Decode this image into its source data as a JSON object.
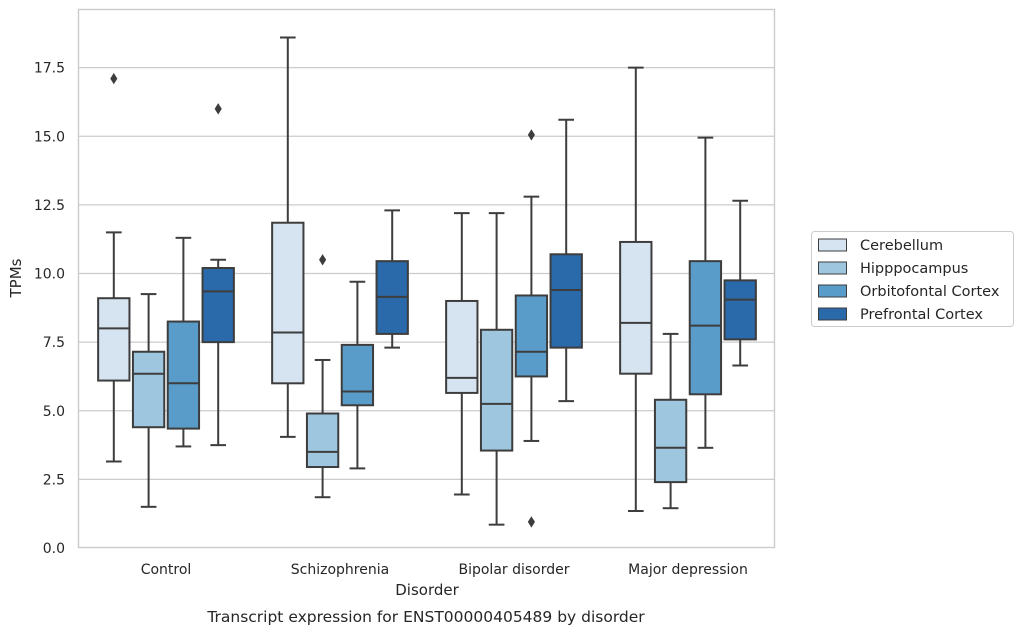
{
  "chart_data": {
    "type": "box",
    "caption": "Transcript expression for ENST00000405489 by disorder",
    "xlabel": "Disorder",
    "ylabel": "TPMs",
    "ylim": [
      0,
      19.6
    ],
    "yticks": [
      "0.0",
      "2.5",
      "5.0",
      "7.5",
      "10.0",
      "12.5",
      "15.0",
      "17.5"
    ],
    "grid": "horizontal",
    "legend_position": "right",
    "categories": [
      "Control",
      "Schizophrenia",
      "Bipolar disorder",
      "Major depression"
    ],
    "series": [
      {
        "name": "Cerebellum",
        "color": "#d6e4f2",
        "boxes": [
          {
            "whisker_low": 3.15,
            "q1": 6.1,
            "median": 8.0,
            "q3": 9.1,
            "whisker_high": 11.5,
            "outliers": [
              17.1
            ]
          },
          {
            "whisker_low": 4.05,
            "q1": 6.0,
            "median": 7.85,
            "q3": 11.85,
            "whisker_high": 18.6,
            "outliers": []
          },
          {
            "whisker_low": 1.95,
            "q1": 5.65,
            "median": 6.2,
            "q3": 9.0,
            "whisker_high": 12.2,
            "outliers": []
          },
          {
            "whisker_low": 1.35,
            "q1": 6.35,
            "median": 8.2,
            "q3": 11.15,
            "whisker_high": 17.5,
            "outliers": []
          }
        ]
      },
      {
        "name": "Hipppocampus",
        "color": "#9ec6de",
        "boxes": [
          {
            "whisker_low": 1.5,
            "q1": 4.4,
            "median": 6.35,
            "q3": 7.15,
            "whisker_high": 9.25,
            "outliers": []
          },
          {
            "whisker_low": 1.85,
            "q1": 2.95,
            "median": 3.5,
            "q3": 4.9,
            "whisker_high": 6.85,
            "outliers": [
              10.5
            ]
          },
          {
            "whisker_low": 0.85,
            "q1": 3.55,
            "median": 5.25,
            "q3": 7.95,
            "whisker_high": 12.2,
            "outliers": []
          },
          {
            "whisker_low": 1.45,
            "q1": 2.4,
            "median": 3.65,
            "q3": 5.4,
            "whisker_high": 7.8,
            "outliers": []
          }
        ]
      },
      {
        "name": "Orbitofontal Cortex",
        "color": "#5a9cc9",
        "boxes": [
          {
            "whisker_low": 3.7,
            "q1": 4.35,
            "median": 6.0,
            "q3": 8.25,
            "whisker_high": 11.3,
            "outliers": []
          },
          {
            "whisker_low": 2.9,
            "q1": 5.2,
            "median": 5.7,
            "q3": 7.4,
            "whisker_high": 9.7,
            "outliers": []
          },
          {
            "whisker_low": 3.9,
            "q1": 6.25,
            "median": 7.15,
            "q3": 9.2,
            "whisker_high": 12.8,
            "outliers": [
              15.05,
              0.95
            ]
          },
          {
            "whisker_low": 3.65,
            "q1": 5.6,
            "median": 8.1,
            "q3": 10.45,
            "whisker_high": 14.95,
            "outliers": []
          }
        ]
      },
      {
        "name": "Prefrontal Cortex",
        "color": "#2a69aa",
        "boxes": [
          {
            "whisker_low": 3.75,
            "q1": 7.5,
            "median": 9.35,
            "q3": 10.2,
            "whisker_high": 10.5,
            "outliers": [
              16.0
            ]
          },
          {
            "whisker_low": 7.3,
            "q1": 7.8,
            "median": 9.15,
            "q3": 10.45,
            "whisker_high": 12.3,
            "outliers": []
          },
          {
            "whisker_low": 5.35,
            "q1": 7.3,
            "median": 9.4,
            "q3": 10.7,
            "whisker_high": 15.6,
            "outliers": []
          },
          {
            "whisker_low": 6.65,
            "q1": 7.6,
            "median": 9.05,
            "q3": 9.75,
            "whisker_high": 12.65,
            "outliers": []
          }
        ]
      }
    ]
  }
}
